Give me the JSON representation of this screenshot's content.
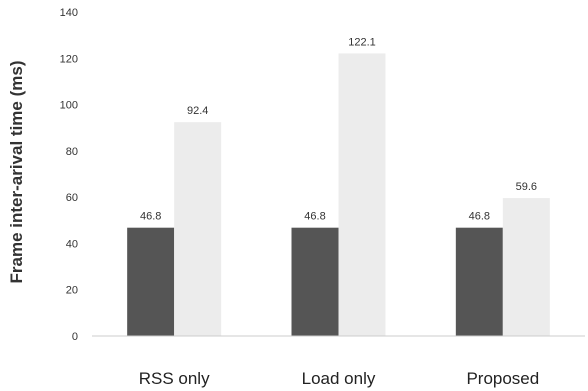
{
  "chart_data": {
    "type": "bar",
    "title": "",
    "xlabel": "",
    "ylabel": "Frame inter-arival time (ms)",
    "ylim": [
      0,
      140
    ],
    "yticks": [
      0,
      20,
      40,
      60,
      80,
      100,
      120,
      140
    ],
    "grid": false,
    "categories": [
      "RSS only",
      "Load only",
      "Proposed"
    ],
    "series": [
      {
        "values": [
          46.8,
          46.8,
          46.8
        ],
        "color": "#555555"
      },
      {
        "values": [
          92.4,
          122.1,
          59.6
        ],
        "color": "#ececec"
      }
    ],
    "data_labels": [
      [
        "46.8",
        "46.8",
        "46.8"
      ],
      [
        "92.4",
        "122.1",
        "59.6"
      ]
    ]
  }
}
